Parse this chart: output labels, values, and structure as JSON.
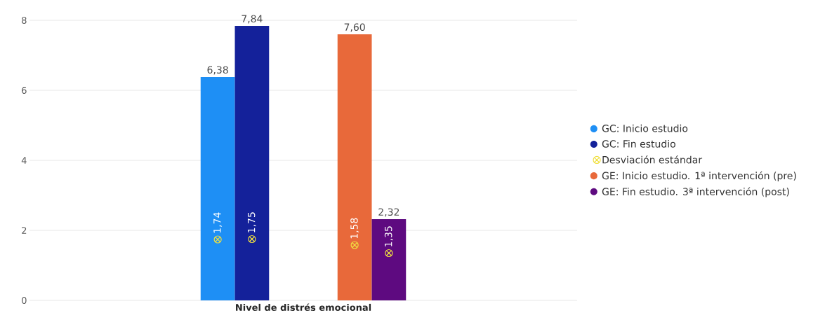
{
  "chart_data": {
    "type": "bar",
    "xlabel": "Nivel de distrés emocional",
    "categories": [
      null,
      null,
      null,
      null,
      null,
      null,
      null,
      null,
      null,
      null,
      null,
      null,
      null,
      null,
      null,
      null
    ],
    "series": [
      {
        "name": "GC: Inicio estudio",
        "color": "#1e8ff5",
        "values": [
          null,
          null,
          null,
          null,
          null,
          6.38,
          null,
          null,
          null,
          null,
          null,
          null,
          null,
          null,
          null,
          null
        ],
        "value_labels": [
          null,
          null,
          null,
          null,
          null,
          "6,38",
          null,
          null,
          null,
          null,
          null,
          null,
          null,
          null,
          null,
          null
        ]
      },
      {
        "name": "GC: Fin estudio",
        "color": "#14219a",
        "values": [
          null,
          null,
          null,
          null,
          null,
          null,
          7.84,
          null,
          null,
          null,
          null,
          null,
          null,
          null,
          null,
          null
        ],
        "value_labels": [
          null,
          null,
          null,
          null,
          null,
          null,
          "7,84",
          null,
          null,
          null,
          null,
          null,
          null,
          null,
          null,
          null
        ]
      },
      {
        "name": "Desviación estándar",
        "type": "scatter",
        "color": "#f0e040",
        "marker": "cross",
        "values": [
          null,
          null,
          null,
          null,
          null,
          1.74,
          1.75,
          null,
          null,
          1.58,
          1.35,
          null,
          null,
          null,
          null,
          null
        ],
        "value_labels": [
          null,
          null,
          null,
          null,
          null,
          "1,74",
          "1,75",
          null,
          null,
          "1,58",
          "1,35",
          null,
          null,
          null,
          null,
          null
        ]
      },
      {
        "name": "GE: Inicio estudio. 1ª intervención (pre)",
        "color": "#e8693a",
        "values": [
          null,
          null,
          null,
          null,
          null,
          null,
          null,
          null,
          null,
          7.6,
          null,
          null,
          null,
          null,
          null,
          null
        ],
        "value_labels": [
          null,
          null,
          null,
          null,
          null,
          null,
          null,
          null,
          null,
          "7,60",
          null,
          null,
          null,
          null,
          null,
          null
        ]
      },
      {
        "name": "GE: Fin estudio. 3ª intervención (post)",
        "color": "#5e0a80",
        "values": [
          null,
          null,
          null,
          null,
          null,
          null,
          null,
          null,
          null,
          null,
          2.32,
          null,
          null,
          null,
          null,
          null
        ],
        "value_labels": [
          null,
          null,
          null,
          null,
          null,
          null,
          null,
          null,
          null,
          null,
          "2,32",
          null,
          null,
          null,
          null,
          null
        ]
      }
    ],
    "ylim": [
      0,
      8
    ],
    "yticks": [
      {
        "value": 0,
        "label": "0"
      },
      {
        "value": 2,
        "label": "2"
      },
      {
        "value": 4,
        "label": "4"
      },
      {
        "value": 6,
        "label": "6"
      },
      {
        "value": 8,
        "label": "8"
      }
    ],
    "grid": "y",
    "legend": "right"
  }
}
